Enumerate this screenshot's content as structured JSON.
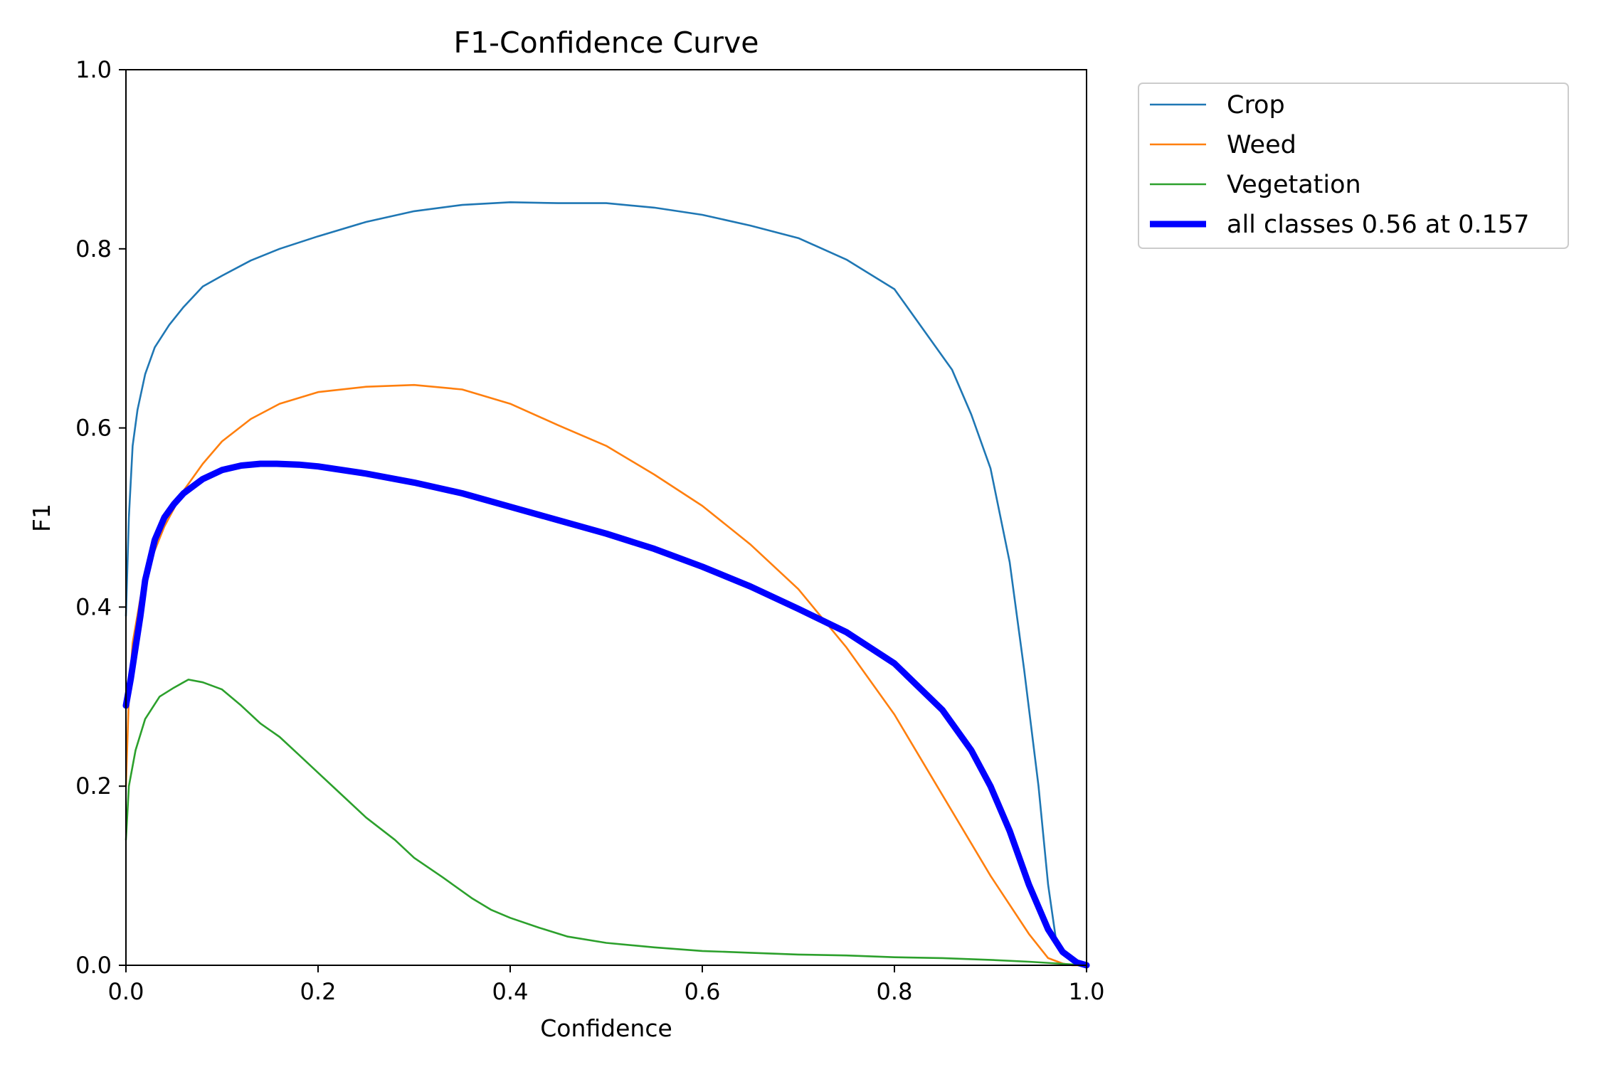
{
  "chart_data": {
    "type": "line",
    "title": "F1-Confidence Curve",
    "xlabel": "Confidence",
    "ylabel": "F1",
    "xlim": [
      0.0,
      1.0
    ],
    "ylim": [
      0.0,
      1.0
    ],
    "xticks": [
      "0.0",
      "0.2",
      "0.4",
      "0.6",
      "0.8",
      "1.0"
    ],
    "yticks": [
      "0.0",
      "0.2",
      "0.4",
      "0.6",
      "0.8",
      "1.0"
    ],
    "grid": false,
    "legend_position": "outside-top-right",
    "series": [
      {
        "name": "Crop",
        "color": "#1f77b4",
        "x": [
          0.0,
          0.003,
          0.007,
          0.012,
          0.02,
          0.03,
          0.045,
          0.06,
          0.08,
          0.1,
          0.13,
          0.16,
          0.2,
          0.25,
          0.3,
          0.35,
          0.4,
          0.45,
          0.5,
          0.55,
          0.6,
          0.65,
          0.7,
          0.75,
          0.8,
          0.83,
          0.86,
          0.88,
          0.9,
          0.92,
          0.935,
          0.95,
          0.96,
          0.968,
          0.975,
          0.985,
          1.0
        ],
        "y": [
          0.39,
          0.5,
          0.58,
          0.62,
          0.66,
          0.69,
          0.715,
          0.735,
          0.758,
          0.77,
          0.787,
          0.8,
          0.814,
          0.83,
          0.842,
          0.849,
          0.852,
          0.851,
          0.851,
          0.846,
          0.838,
          0.826,
          0.812,
          0.788,
          0.755,
          0.71,
          0.665,
          0.615,
          0.555,
          0.45,
          0.33,
          0.2,
          0.09,
          0.03,
          0.012,
          0.004,
          0.0
        ]
      },
      {
        "name": "Weed",
        "color": "#ff7f0e",
        "x": [
          0.0,
          0.003,
          0.007,
          0.015,
          0.025,
          0.04,
          0.06,
          0.08,
          0.1,
          0.13,
          0.16,
          0.2,
          0.25,
          0.3,
          0.35,
          0.4,
          0.45,
          0.5,
          0.55,
          0.6,
          0.65,
          0.7,
          0.75,
          0.8,
          0.85,
          0.9,
          0.94,
          0.96,
          0.975,
          0.985,
          1.0
        ],
        "y": [
          0.2,
          0.3,
          0.36,
          0.41,
          0.45,
          0.49,
          0.53,
          0.56,
          0.585,
          0.61,
          0.627,
          0.64,
          0.646,
          0.648,
          0.643,
          0.627,
          0.603,
          0.58,
          0.548,
          0.513,
          0.47,
          0.42,
          0.355,
          0.28,
          0.19,
          0.1,
          0.035,
          0.008,
          0.002,
          0.0,
          0.0
        ]
      },
      {
        "name": "Vegetation",
        "color": "#2ca02c",
        "x": [
          0.0,
          0.003,
          0.01,
          0.02,
          0.035,
          0.05,
          0.065,
          0.08,
          0.1,
          0.12,
          0.14,
          0.16,
          0.18,
          0.2,
          0.22,
          0.25,
          0.28,
          0.3,
          0.33,
          0.36,
          0.38,
          0.4,
          0.43,
          0.46,
          0.5,
          0.55,
          0.6,
          0.65,
          0.7,
          0.75,
          0.8,
          0.85,
          0.9,
          0.94,
          0.97,
          1.0
        ],
        "y": [
          0.14,
          0.2,
          0.24,
          0.275,
          0.3,
          0.31,
          0.319,
          0.316,
          0.308,
          0.29,
          0.27,
          0.255,
          0.235,
          0.215,
          0.195,
          0.165,
          0.14,
          0.12,
          0.098,
          0.075,
          0.062,
          0.053,
          0.042,
          0.032,
          0.025,
          0.02,
          0.016,
          0.014,
          0.012,
          0.011,
          0.009,
          0.008,
          0.006,
          0.004,
          0.002,
          0.0
        ]
      },
      {
        "name": "all classes 0.56 at 0.157",
        "color": "#0000ff",
        "x": [
          0.0,
          0.005,
          0.01,
          0.015,
          0.02,
          0.03,
          0.04,
          0.05,
          0.06,
          0.08,
          0.1,
          0.12,
          0.14,
          0.157,
          0.18,
          0.2,
          0.25,
          0.3,
          0.35,
          0.4,
          0.45,
          0.5,
          0.55,
          0.6,
          0.65,
          0.7,
          0.75,
          0.8,
          0.85,
          0.88,
          0.9,
          0.92,
          0.94,
          0.96,
          0.975,
          0.99,
          1.0
        ],
        "y": [
          0.29,
          0.32,
          0.355,
          0.39,
          0.43,
          0.475,
          0.5,
          0.515,
          0.527,
          0.543,
          0.553,
          0.558,
          0.56,
          0.56,
          0.559,
          0.557,
          0.549,
          0.539,
          0.527,
          0.512,
          0.497,
          0.482,
          0.465,
          0.445,
          0.423,
          0.398,
          0.372,
          0.337,
          0.285,
          0.24,
          0.2,
          0.15,
          0.09,
          0.04,
          0.015,
          0.003,
          0.0
        ]
      }
    ]
  }
}
